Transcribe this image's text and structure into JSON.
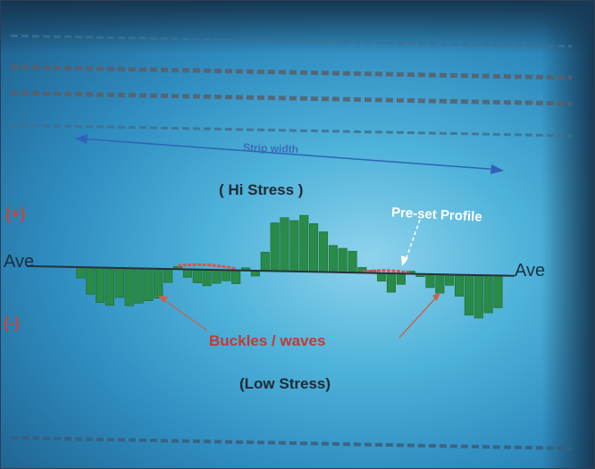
{
  "chart_data": {
    "type": "bar",
    "title": "",
    "xlabel": "Strip width",
    "ylabel": "",
    "baseline_label": "Ave",
    "positive_label": "(+)",
    "negative_label": "(-)",
    "annotations": {
      "hi_stress": "( Hi Stress )",
      "low_stress": "(Low Stress)",
      "pre_set_profile": "Pre-set Profile",
      "buckles_waves": "Buckles / waves"
    },
    "colors": {
      "bars": "#2a8a48",
      "profile": "#d9534f",
      "baseline": "#263238",
      "arrow": "#2f63b8"
    },
    "ylim": [
      -10,
      13
    ],
    "values": [
      -2,
      -5,
      -6.5,
      -7,
      -5.5,
      -7,
      -6.5,
      -6,
      -5.5,
      -2.5,
      0.5,
      -1.5,
      -2.5,
      -3,
      -2.5,
      -2,
      -2.5,
      0.5,
      -1,
      3.5,
      9,
      10,
      9.5,
      10.5,
      9,
      7.5,
      5,
      4.5,
      4,
      1,
      0.5,
      -1.5,
      -3.5,
      -2,
      0.5,
      -0.5,
      -2.5,
      -3.5,
      -2,
      -4,
      -7.5,
      -8,
      -7,
      -6
    ],
    "preset_profile": [
      0,
      0,
      0,
      0,
      0,
      0,
      0,
      0,
      0,
      0,
      0.7,
      0.8,
      0.9,
      0.9,
      0.8,
      0.6,
      0.3,
      0,
      0,
      0,
      0,
      0,
      0,
      0,
      0,
      0,
      0,
      0,
      0,
      0.2,
      0.4,
      0.5,
      0.5,
      0.4,
      0.2,
      0,
      0,
      0,
      0,
      0,
      0,
      0,
      0,
      0
    ]
  }
}
